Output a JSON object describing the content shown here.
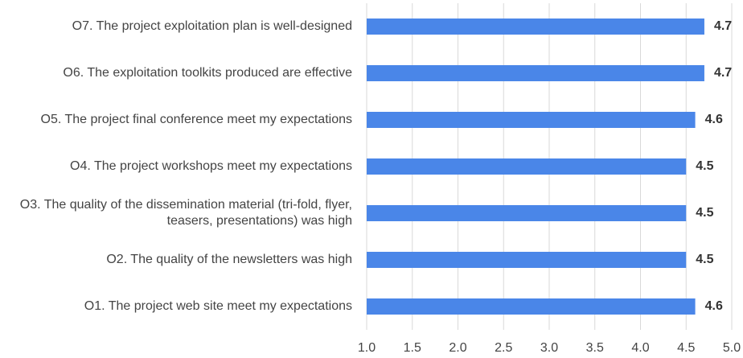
{
  "chart_data": {
    "type": "bar",
    "orientation": "horizontal",
    "categories": [
      "O7. The project exploitation plan is well-designed",
      "O6. The exploitation toolkits produced are effective",
      "O5. The project final conference meet my expectations",
      "O4. The project workshops meet my expectations",
      "O3. The quality of the dissemination material (tri-fold, flyer, teasers, presentations) was high",
      "O2. The quality of the newsletters was high",
      "O1. The project web site meet my expectations"
    ],
    "values": [
      4.7,
      4.7,
      4.6,
      4.5,
      4.5,
      4.5,
      4.6
    ],
    "color": "#4a86e8",
    "xlim": [
      1,
      5
    ],
    "xticks": [
      {
        "value": 1,
        "label": "1.0"
      },
      {
        "value": 1.5,
        "label": "1.5"
      },
      {
        "value": 2,
        "label": "2.0"
      },
      {
        "value": 2.5,
        "label": "2.5"
      },
      {
        "value": 3,
        "label": "3.0"
      },
      {
        "value": 3.5,
        "label": "3.5"
      },
      {
        "value": 4,
        "label": "4.0"
      },
      {
        "value": 4.5,
        "label": "4.5"
      },
      {
        "value": 5,
        "label": "5.0"
      }
    ],
    "grid": true
  }
}
